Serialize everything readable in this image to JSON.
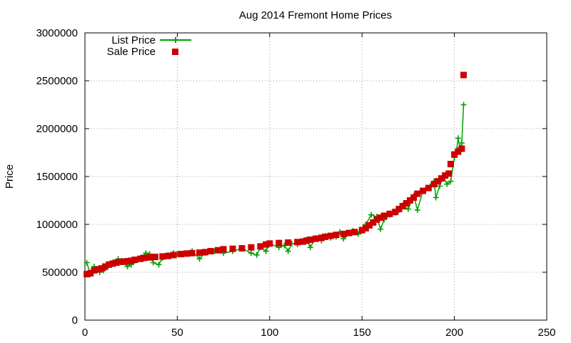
{
  "chart_data": {
    "type": "scatter",
    "title": "Aug 2014 Fremont Home Prices",
    "xlabel": "",
    "ylabel": "Price",
    "xlim": [
      0,
      250
    ],
    "ylim": [
      0,
      3000000
    ],
    "xticks": [
      0,
      50,
      100,
      150,
      200,
      250
    ],
    "yticks": [
      0,
      500000,
      1000000,
      1500000,
      2000000,
      2500000,
      3000000
    ],
    "grid": true,
    "legend_position": "top-left",
    "series": [
      {
        "name": "List Price",
        "style": "linespoints",
        "marker": "plus",
        "color": "#00a000",
        "x": [
          1,
          3,
          5,
          8,
          10,
          12,
          15,
          18,
          20,
          23,
          25,
          27,
          30,
          33,
          35,
          37,
          40,
          42,
          45,
          48,
          50,
          55,
          58,
          62,
          65,
          70,
          75,
          80,
          85,
          90,
          93,
          95,
          98,
          100,
          105,
          108,
          110,
          112,
          115,
          118,
          120,
          122,
          125,
          128,
          130,
          133,
          136,
          138,
          140,
          145,
          148,
          150,
          152,
          155,
          158,
          160,
          162,
          165,
          168,
          170,
          172,
          175,
          178,
          180,
          183,
          185,
          187,
          189,
          190,
          192,
          194,
          196,
          198,
          200,
          201,
          202,
          203,
          204,
          205
        ],
        "y": [
          600000,
          480000,
          560000,
          500000,
          520000,
          560000,
          600000,
          640000,
          620000,
          560000,
          580000,
          620000,
          650000,
          700000,
          690000,
          600000,
          580000,
          650000,
          680000,
          700000,
          690000,
          700000,
          720000,
          640000,
          700000,
          720000,
          700000,
          720000,
          750000,
          700000,
          680000,
          760000,
          720000,
          800000,
          760000,
          780000,
          720000,
          800000,
          790000,
          820000,
          840000,
          760000,
          860000,
          830000,
          880000,
          860000,
          870000,
          920000,
          850000,
          930000,
          900000,
          930000,
          1000000,
          1100000,
          1080000,
          950000,
          1050000,
          1100000,
          1120000,
          1150000,
          1200000,
          1160000,
          1300000,
          1150000,
          1350000,
          1380000,
          1400000,
          1450000,
          1280000,
          1400000,
          1500000,
          1420000,
          1450000,
          1700000,
          1750000,
          1900000,
          1800000,
          1850000,
          2250000
        ]
      },
      {
        "name": "Sale Price",
        "style": "points",
        "marker": "square",
        "color": "#cc0000",
        "x": [
          1,
          3,
          5,
          7,
          9,
          11,
          13,
          15,
          17,
          19,
          21,
          23,
          25,
          27,
          30,
          32,
          35,
          38,
          42,
          45,
          48,
          52,
          55,
          58,
          62,
          65,
          68,
          72,
          75,
          80,
          85,
          90,
          95,
          98,
          100,
          105,
          110,
          115,
          118,
          120,
          122,
          125,
          128,
          130,
          133,
          136,
          140,
          143,
          146,
          150,
          152,
          154,
          156,
          158,
          160,
          162,
          165,
          168,
          170,
          172,
          174,
          176,
          178,
          180,
          183,
          186,
          189,
          191,
          193,
          195,
          197,
          198,
          200,
          202,
          204,
          205
        ],
        "y": [
          480000,
          490000,
          520000,
          530000,
          540000,
          560000,
          580000,
          590000,
          600000,
          610000,
          610000,
          615000,
          620000,
          630000,
          640000,
          650000,
          655000,
          660000,
          665000,
          670000,
          680000,
          690000,
          695000,
          700000,
          705000,
          710000,
          720000,
          730000,
          740000,
          745000,
          750000,
          760000,
          770000,
          790000,
          800000,
          805000,
          810000,
          815000,
          820000,
          830000,
          840000,
          850000,
          860000,
          870000,
          880000,
          890000,
          900000,
          910000,
          920000,
          940000,
          960000,
          990000,
          1020000,
          1050000,
          1070000,
          1090000,
          1110000,
          1130000,
          1160000,
          1190000,
          1220000,
          1250000,
          1280000,
          1320000,
          1350000,
          1380000,
          1420000,
          1450000,
          1480000,
          1510000,
          1530000,
          1630000,
          1730000,
          1760000,
          1790000,
          2560000
        ]
      }
    ]
  }
}
